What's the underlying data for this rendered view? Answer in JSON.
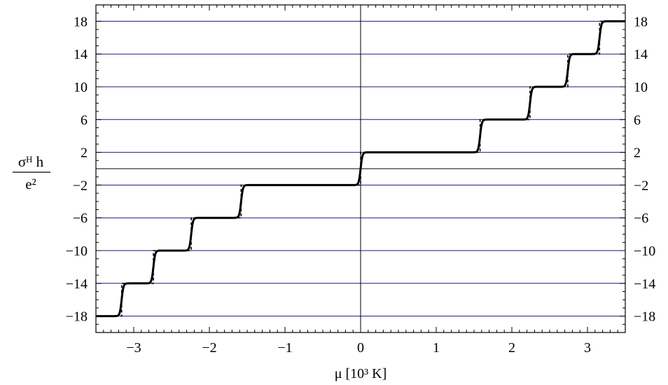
{
  "chart_data": {
    "type": "line",
    "xlabel": "μ [10³ K]",
    "ylabel": "σᴴ h / e²",
    "xlim": [
      -3.5,
      3.5
    ],
    "ylim": [
      -20,
      20
    ],
    "x_ticks": [
      -3,
      -2,
      -1,
      0,
      1,
      2,
      3
    ],
    "x_tick_labels": [
      "−3",
      "−2",
      "−1",
      "0",
      "1",
      "2",
      "3"
    ],
    "y_ticks": [
      18,
      14,
      10,
      6,
      2,
      -2,
      -6,
      -10,
      -14,
      -18
    ],
    "y_tick_labels": [
      "18",
      "14",
      "10",
      "6",
      "2",
      "−2",
      "−6",
      "−10",
      "−14",
      "−18"
    ],
    "plateau_gridlines": [
      18,
      14,
      10,
      6,
      2,
      -2,
      -6,
      -10,
      -14,
      -18
    ],
    "grid": "horizontal lines at plateau values",
    "steps": [
      {
        "x": -3.16,
        "from": -18,
        "to": -14
      },
      {
        "x": -2.74,
        "from": -14,
        "to": -10
      },
      {
        "x": -2.24,
        "from": -10,
        "to": -6
      },
      {
        "x": -1.58,
        "from": -6,
        "to": -2
      },
      {
        "x": 0.0,
        "from": -2,
        "to": 2
      },
      {
        "x": 1.58,
        "from": 2,
        "to": 6
      },
      {
        "x": 2.24,
        "from": 6,
        "to": 10
      },
      {
        "x": 2.74,
        "from": 10,
        "to": 14
      },
      {
        "x": 3.16,
        "from": 14,
        "to": 18
      }
    ],
    "series": [
      {
        "style": "solid",
        "color": "#000000",
        "description_visual": "thermally smoothed staircase"
      },
      {
        "style": "dashed",
        "color": "#000000",
        "description_visual": "sharp staircase"
      }
    ],
    "colors": {
      "gridlines": "#1a1a80",
      "axes": "#000000"
    }
  }
}
